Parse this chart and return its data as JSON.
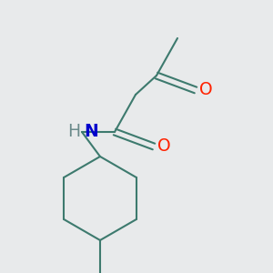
{
  "background_color": "#e8eaeb",
  "bond_color": "#3d7a6e",
  "bond_width": 1.5,
  "atom_colors": {
    "O": "#ff2200",
    "N": "#0000cc",
    "H": "#6a8a8a",
    "C": "#000000"
  },
  "font_size": 13.5,
  "fig_size": [
    3.0,
    3.0
  ],
  "dpi": 100
}
